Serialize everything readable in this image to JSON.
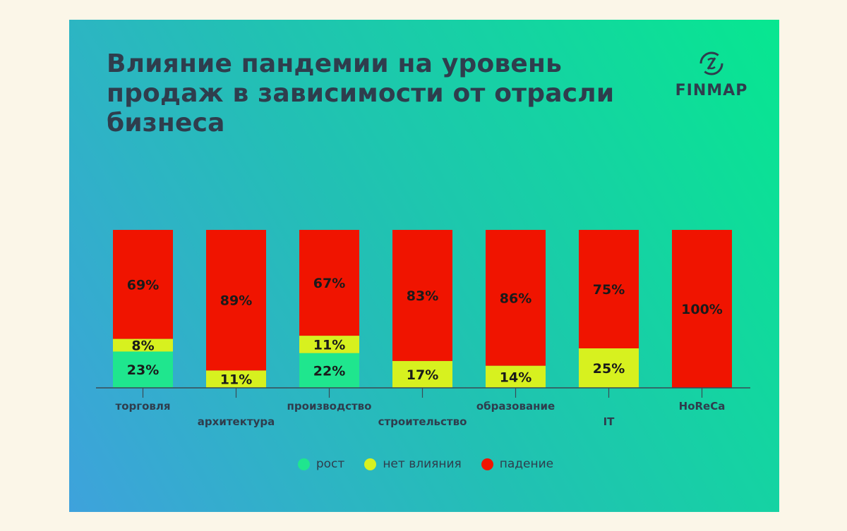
{
  "title": "Влияние пандемии на уровень продаж в зависимости от отрасли бизнеса",
  "logo": {
    "text": "FINMAP",
    "icon": "finmap-logo-icon"
  },
  "colors": {
    "growth": "#1fe68e",
    "none": "#d7f11f",
    "decline": "#f01400"
  },
  "legend": [
    {
      "key": "growth",
      "label": "рост"
    },
    {
      "key": "none",
      "label": "нет влияния"
    },
    {
      "key": "decline",
      "label": "падение"
    }
  ],
  "chart_data": {
    "type": "bar",
    "stacked": true,
    "categories": [
      "торговля",
      "архитектура",
      "производство",
      "строительство",
      "образование",
      "IT",
      "HoReCa"
    ],
    "series": [
      {
        "name": "рост",
        "values": [
          23,
          0,
          22,
          0,
          0,
          0,
          0
        ]
      },
      {
        "name": "нет влияния",
        "values": [
          8,
          11,
          11,
          17,
          14,
          25,
          0
        ]
      },
      {
        "name": "падение",
        "values": [
          69,
          89,
          67,
          83,
          86,
          75,
          100
        ]
      }
    ],
    "value_labels": [
      [
        "23%",
        "",
        "22%",
        "",
        "",
        "",
        ""
      ],
      [
        "8%",
        "11%",
        "11%",
        "17%",
        "14%",
        "25%",
        ""
      ],
      [
        "69%",
        "89%",
        "67%",
        "83%",
        "86%",
        "75%",
        "100%"
      ]
    ],
    "ylim": [
      0,
      100
    ],
    "grid": false,
    "legend_position": "bottom-center"
  }
}
